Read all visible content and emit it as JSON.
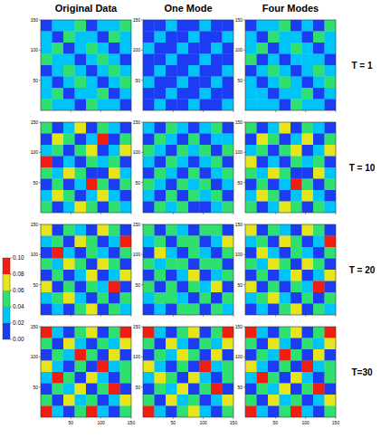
{
  "chart_data": {
    "type": "heatmap",
    "columns": [
      "Original Data",
      "One Mode",
      "Four Modes"
    ],
    "rows": [
      "T = 1",
      "T = 10",
      "T = 20",
      "T=30"
    ],
    "xlim": [
      0,
      150
    ],
    "ylim": [
      0,
      150
    ],
    "xticks": [
      50,
      100,
      150
    ],
    "yticks": [
      50,
      100,
      150
    ],
    "colorbar": {
      "range": [
        0,
        0.1
      ],
      "ticks": [
        {
          "value": 0,
          "label": "0.00"
        },
        0.02,
        0.04,
        0.06,
        0.08,
        {
          "value": 0.1,
          "label": "0.10"
        }
      ],
      "levels": [
        0,
        0.02,
        0.04,
        0.06,
        0.08,
        0.1
      ],
      "colors": [
        "#1c3cf4",
        "#00c4f8",
        "#2fe070",
        "#e6e41a",
        "#f01e10"
      ]
    },
    "panels": [
      [
        [
          [
            0.01,
            0.03,
            0.02,
            0.04,
            0.01,
            0.03,
            0.02,
            0.04
          ],
          [
            0.03,
            0.01,
            0.05,
            0.02,
            0.03,
            0.01,
            0.04,
            0.02
          ],
          [
            0.02,
            0.04,
            0.01,
            0.03,
            0.05,
            0.02,
            0.01,
            0.03
          ],
          [
            0.04,
            0.02,
            0.03,
            0.01,
            0.02,
            0.04,
            0.03,
            0.01
          ],
          [
            0.01,
            0.03,
            0.04,
            0.02,
            0.01,
            0.03,
            0.05,
            0.02
          ],
          [
            0.03,
            0.01,
            0.02,
            0.05,
            0.03,
            0.01,
            0.02,
            0.04
          ],
          [
            0.02,
            0.04,
            0.01,
            0.03,
            0.02,
            0.04,
            0.01,
            0.03
          ],
          [
            0.04,
            0.02,
            0.03,
            0.01,
            0.04,
            0.02,
            0.03,
            0.01
          ]
        ],
        [
          [
            0.01,
            0.01,
            0.02,
            0.01,
            0.01,
            0.03,
            0.01,
            0.01
          ],
          [
            0.01,
            0.02,
            0.01,
            0.01,
            0.02,
            0.01,
            0.01,
            0.02
          ],
          [
            0.02,
            0.01,
            0.01,
            0.03,
            0.01,
            0.01,
            0.02,
            0.01
          ],
          [
            0.01,
            0.01,
            0.02,
            0.01,
            0.01,
            0.02,
            0.01,
            0.01
          ],
          [
            0.01,
            0.03,
            0.01,
            0.01,
            0.02,
            0.01,
            0.01,
            0.03
          ],
          [
            0.02,
            0.01,
            0.01,
            0.02,
            0.01,
            0.01,
            0.03,
            0.01
          ],
          [
            0.01,
            0.01,
            0.03,
            0.01,
            0.01,
            0.02,
            0.01,
            0.01
          ],
          [
            0.01,
            0.02,
            0.01,
            0.01,
            0.03,
            0.01,
            0.01,
            0.02
          ]
        ],
        [
          [
            0.01,
            0.03,
            0.02,
            0.04,
            0.01,
            0.03,
            0.01,
            0.04
          ],
          [
            0.03,
            0.01,
            0.04,
            0.02,
            0.03,
            0.01,
            0.04,
            0.02
          ],
          [
            0.02,
            0.04,
            0.01,
            0.03,
            0.05,
            0.02,
            0.01,
            0.03
          ],
          [
            0.04,
            0.01,
            0.03,
            0.01,
            0.02,
            0.03,
            0.03,
            0.01
          ],
          [
            0.01,
            0.03,
            0.04,
            0.02,
            0.01,
            0.03,
            0.04,
            0.02
          ],
          [
            0.03,
            0.01,
            0.02,
            0.04,
            0.03,
            0.01,
            0.02,
            0.04
          ],
          [
            0.02,
            0.03,
            0.01,
            0.03,
            0.02,
            0.04,
            0.01,
            0.03
          ],
          [
            0.03,
            0.02,
            0.03,
            0.01,
            0.04,
            0.02,
            0.03,
            0.01
          ]
        ]
      ],
      [
        [
          [
            0.05,
            0.01,
            0.03,
            0.07,
            0.01,
            0.05,
            0.03,
            0.01
          ],
          [
            0.01,
            0.07,
            0.05,
            0.01,
            0.03,
            0.09,
            0.01,
            0.05
          ],
          [
            0.03,
            0.05,
            0.01,
            0.05,
            0.07,
            0.01,
            0.03,
            0.07
          ],
          [
            0.09,
            0.01,
            0.03,
            0.01,
            0.05,
            0.03,
            0.05,
            0.01
          ],
          [
            0.05,
            0.03,
            0.07,
            0.05,
            0.01,
            0.01,
            0.07,
            0.03
          ],
          [
            0.01,
            0.05,
            0.01,
            0.03,
            0.09,
            0.05,
            0.01,
            0.05
          ],
          [
            0.03,
            0.07,
            0.05,
            0.01,
            0.03,
            0.07,
            0.03,
            0.01
          ],
          [
            0.05,
            0.01,
            0.03,
            0.07,
            0.05,
            0.01,
            0.05,
            0.03
          ]
        ],
        [
          [
            0.03,
            0.01,
            0.05,
            0.03,
            0.01,
            0.03,
            0.05,
            0.01
          ],
          [
            0.01,
            0.05,
            0.03,
            0.01,
            0.05,
            0.01,
            0.03,
            0.03
          ],
          [
            0.05,
            0.03,
            0.01,
            0.05,
            0.03,
            0.05,
            0.01,
            0.05
          ],
          [
            0.03,
            0.01,
            0.05,
            0.03,
            0.01,
            0.03,
            0.05,
            0.01
          ],
          [
            0.01,
            0.05,
            0.03,
            0.01,
            0.05,
            0.01,
            0.03,
            0.05
          ],
          [
            0.05,
            0.03,
            0.01,
            0.05,
            0.03,
            0.05,
            0.01,
            0.03
          ],
          [
            0.03,
            0.01,
            0.05,
            0.01,
            0.05,
            0.03,
            0.05,
            0.01
          ],
          [
            0.01,
            0.05,
            0.03,
            0.05,
            0.01,
            0.01,
            0.03,
            0.05
          ]
        ],
        [
          [
            0.05,
            0.01,
            0.03,
            0.07,
            0.01,
            0.05,
            0.03,
            0.01
          ],
          [
            0.01,
            0.07,
            0.05,
            0.01,
            0.03,
            0.07,
            0.01,
            0.05
          ],
          [
            0.03,
            0.05,
            0.01,
            0.05,
            0.07,
            0.01,
            0.03,
            0.07
          ],
          [
            0.07,
            0.01,
            0.03,
            0.01,
            0.05,
            0.03,
            0.05,
            0.01
          ],
          [
            0.05,
            0.03,
            0.07,
            0.05,
            0.01,
            0.01,
            0.07,
            0.03
          ],
          [
            0.01,
            0.05,
            0.01,
            0.03,
            0.09,
            0.05,
            0.01,
            0.05
          ],
          [
            0.03,
            0.07,
            0.05,
            0.01,
            0.03,
            0.07,
            0.03,
            0.01
          ],
          [
            0.05,
            0.01,
            0.03,
            0.07,
            0.05,
            0.01,
            0.05,
            0.03
          ]
        ]
      ],
      [
        [
          [
            0.07,
            0.01,
            0.05,
            0.03,
            0.01,
            0.07,
            0.05,
            0.01
          ],
          [
            0.03,
            0.05,
            0.01,
            0.07,
            0.05,
            0.01,
            0.03,
            0.09
          ],
          [
            0.01,
            0.09,
            0.03,
            0.01,
            0.05,
            0.03,
            0.01,
            0.05
          ],
          [
            0.05,
            0.03,
            0.07,
            0.05,
            0.01,
            0.07,
            0.05,
            0.01
          ],
          [
            0.01,
            0.05,
            0.01,
            0.03,
            0.07,
            0.01,
            0.03,
            0.07
          ],
          [
            0.07,
            0.01,
            0.05,
            0.01,
            0.05,
            0.03,
            0.09,
            0.01
          ],
          [
            0.03,
            0.05,
            0.07,
            0.03,
            0.01,
            0.05,
            0.01,
            0.05
          ],
          [
            0.01,
            0.03,
            0.01,
            0.05,
            0.07,
            0.01,
            0.05,
            0.03
          ]
        ],
        [
          [
            0.05,
            0.01,
            0.05,
            0.03,
            0.01,
            0.05,
            0.05,
            0.01
          ],
          [
            0.03,
            0.05,
            0.01,
            0.05,
            0.05,
            0.01,
            0.03,
            0.07
          ],
          [
            0.01,
            0.07,
            0.03,
            0.01,
            0.05,
            0.03,
            0.01,
            0.05
          ],
          [
            0.05,
            0.03,
            0.05,
            0.05,
            0.01,
            0.05,
            0.05,
            0.01
          ],
          [
            0.01,
            0.05,
            0.01,
            0.03,
            0.07,
            0.01,
            0.03,
            0.05
          ],
          [
            0.05,
            0.01,
            0.05,
            0.01,
            0.05,
            0.03,
            0.07,
            0.01
          ],
          [
            0.03,
            0.05,
            0.05,
            0.03,
            0.01,
            0.05,
            0.01,
            0.05
          ],
          [
            0.01,
            0.03,
            0.01,
            0.05,
            0.05,
            0.01,
            0.05,
            0.03
          ]
        ],
        [
          [
            0.07,
            0.01,
            0.05,
            0.03,
            0.01,
            0.07,
            0.05,
            0.01
          ],
          [
            0.03,
            0.05,
            0.01,
            0.07,
            0.05,
            0.01,
            0.03,
            0.09
          ],
          [
            0.01,
            0.07,
            0.03,
            0.01,
            0.05,
            0.03,
            0.01,
            0.05
          ],
          [
            0.05,
            0.03,
            0.07,
            0.05,
            0.01,
            0.07,
            0.05,
            0.01
          ],
          [
            0.01,
            0.05,
            0.01,
            0.03,
            0.07,
            0.01,
            0.03,
            0.07
          ],
          [
            0.07,
            0.01,
            0.05,
            0.01,
            0.05,
            0.03,
            0.09,
            0.01
          ],
          [
            0.03,
            0.05,
            0.07,
            0.03,
            0.01,
            0.05,
            0.01,
            0.05
          ],
          [
            0.01,
            0.03,
            0.01,
            0.05,
            0.07,
            0.01,
            0.05,
            0.03
          ]
        ]
      ],
      [
        [
          [
            0.09,
            0.03,
            0.01,
            0.05,
            0.07,
            0.01,
            0.05,
            0.1
          ],
          [
            0.05,
            0.01,
            0.07,
            0.03,
            0.01,
            0.05,
            0.03,
            0.07
          ],
          [
            0.01,
            0.05,
            0.03,
            0.09,
            0.05,
            0.01,
            0.07,
            0.01
          ],
          [
            0.07,
            0.03,
            0.01,
            0.05,
            0.01,
            0.1,
            0.03,
            0.05
          ],
          [
            0.03,
            0.09,
            0.05,
            0.01,
            0.07,
            0.03,
            0.01,
            0.05
          ],
          [
            0.01,
            0.05,
            0.03,
            0.07,
            0.01,
            0.05,
            0.09,
            0.01
          ],
          [
            0.05,
            0.01,
            0.07,
            0.03,
            0.05,
            0.01,
            0.03,
            0.07
          ],
          [
            0.1,
            0.03,
            0.01,
            0.05,
            0.09,
            0.03,
            0.01,
            0.05
          ]
        ],
        [
          [
            0.09,
            0.03,
            0.01,
            0.05,
            0.07,
            0.01,
            0.05,
            0.09
          ],
          [
            0.05,
            0.01,
            0.07,
            0.03,
            0.01,
            0.05,
            0.03,
            0.07
          ],
          [
            0.01,
            0.05,
            0.03,
            0.07,
            0.05,
            0.01,
            0.07,
            0.01
          ],
          [
            0.07,
            0.03,
            0.01,
            0.05,
            0.01,
            0.09,
            0.03,
            0.05
          ],
          [
            0.03,
            0.07,
            0.05,
            0.01,
            0.07,
            0.03,
            0.01,
            0.05
          ],
          [
            0.01,
            0.05,
            0.03,
            0.07,
            0.01,
            0.05,
            0.09,
            0.01
          ],
          [
            0.05,
            0.01,
            0.07,
            0.03,
            0.05,
            0.01,
            0.03,
            0.07
          ],
          [
            0.09,
            0.03,
            0.01,
            0.05,
            0.07,
            0.03,
            0.01,
            0.05
          ]
        ],
        [
          [
            0.09,
            0.03,
            0.01,
            0.05,
            0.07,
            0.01,
            0.05,
            0.1
          ],
          [
            0.05,
            0.01,
            0.07,
            0.03,
            0.01,
            0.05,
            0.03,
            0.07
          ],
          [
            0.01,
            0.05,
            0.03,
            0.09,
            0.05,
            0.01,
            0.07,
            0.01
          ],
          [
            0.07,
            0.03,
            0.01,
            0.05,
            0.01,
            0.1,
            0.03,
            0.05
          ],
          [
            0.03,
            0.09,
            0.05,
            0.01,
            0.07,
            0.03,
            0.01,
            0.05
          ],
          [
            0.01,
            0.05,
            0.03,
            0.07,
            0.01,
            0.05,
            0.09,
            0.01
          ],
          [
            0.05,
            0.01,
            0.07,
            0.03,
            0.05,
            0.01,
            0.03,
            0.07
          ],
          [
            0.1,
            0.03,
            0.01,
            0.05,
            0.09,
            0.03,
            0.01,
            0.05
          ]
        ]
      ]
    ]
  }
}
